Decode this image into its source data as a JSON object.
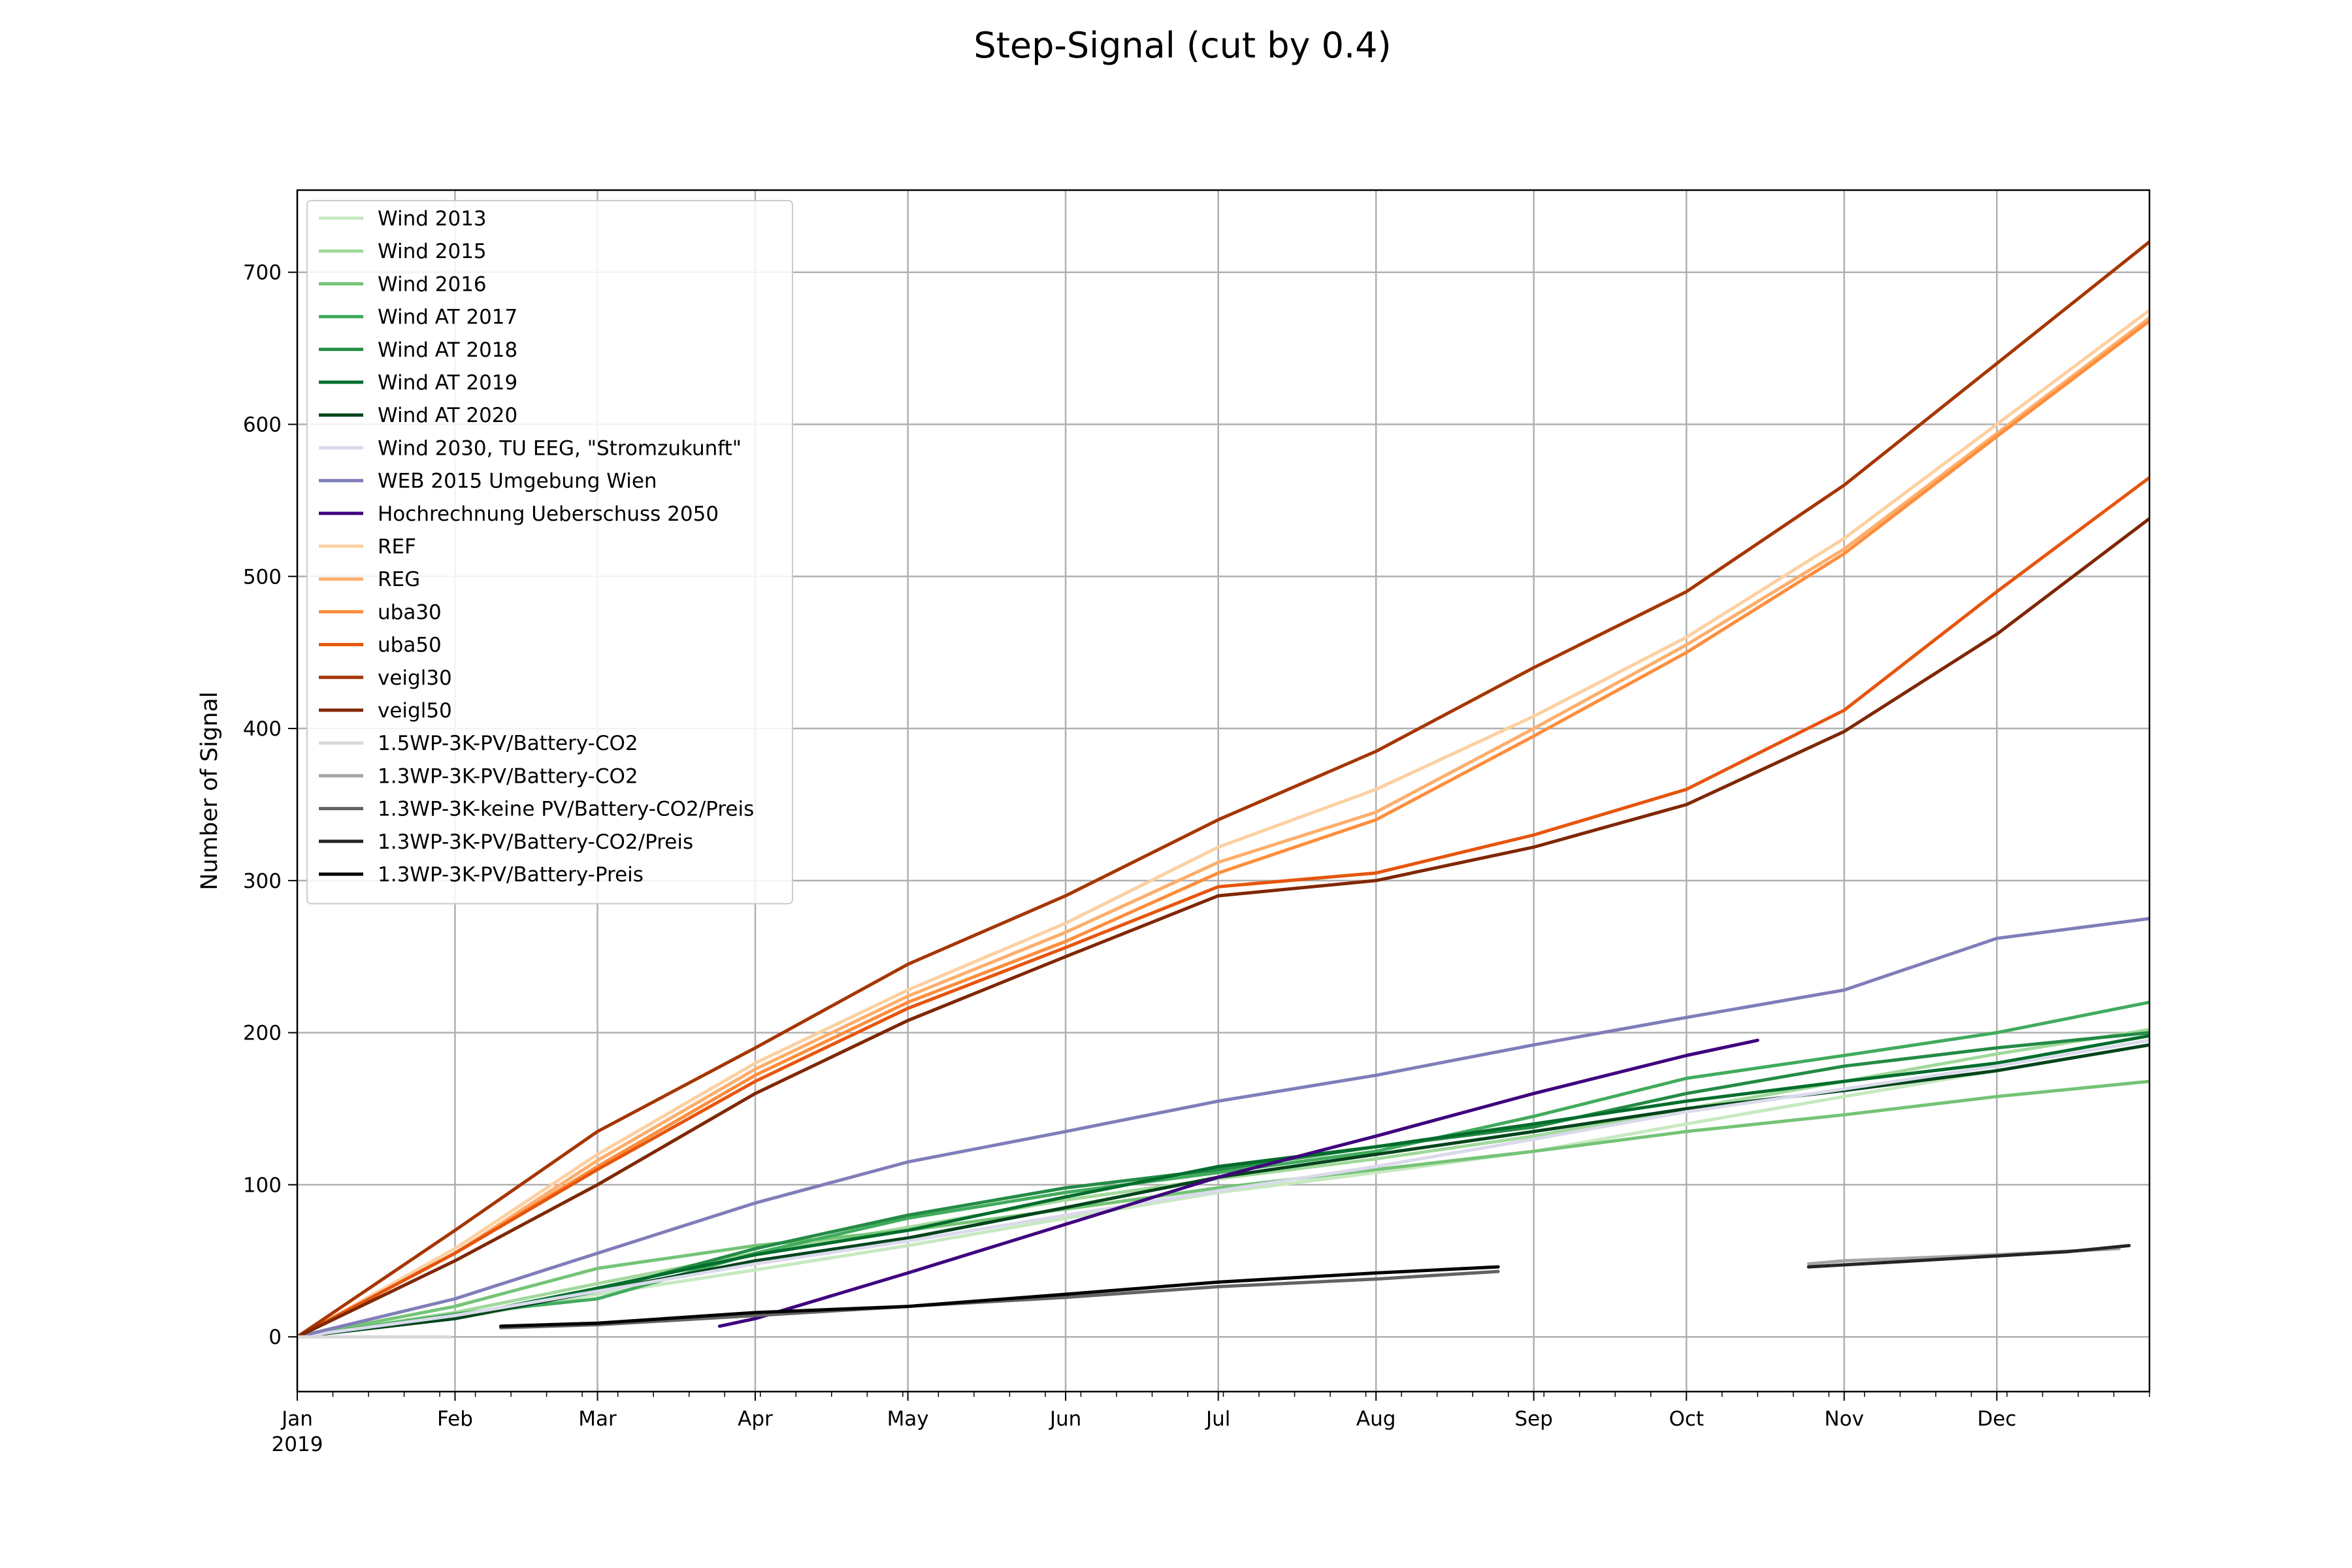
{
  "chart_data": {
    "type": "line",
    "title": "Step-Signal (cut by 0.4)",
    "xlabel": "",
    "ylabel": "Number of Signal",
    "x_axis": {
      "type": "date",
      "range": [
        "2019-01-01",
        "2019-12-31"
      ],
      "ticks": [
        {
          "date": "2019-01-01",
          "label": "Jan",
          "sublabel": "2019"
        },
        {
          "date": "2019-02-01",
          "label": "Feb"
        },
        {
          "date": "2019-03-01",
          "label": "Mar"
        },
        {
          "date": "2019-04-01",
          "label": "Apr"
        },
        {
          "date": "2019-05-01",
          "label": "May"
        },
        {
          "date": "2019-06-01",
          "label": "Jun"
        },
        {
          "date": "2019-07-01",
          "label": "Jul"
        },
        {
          "date": "2019-08-01",
          "label": "Aug"
        },
        {
          "date": "2019-09-01",
          "label": "Sep"
        },
        {
          "date": "2019-10-01",
          "label": "Oct"
        },
        {
          "date": "2019-11-01",
          "label": "Nov"
        },
        {
          "date": "2019-12-01",
          "label": "Dec"
        }
      ]
    },
    "y_axis": {
      "range": [
        -36,
        754
      ],
      "ticks": [
        0,
        100,
        200,
        300,
        400,
        500,
        600,
        700
      ]
    },
    "grid": true,
    "legend_position": "top-left",
    "series": [
      {
        "name": "Wind 2013",
        "color": "#c7e9c0",
        "points": [
          [
            "2019-01-01",
            0
          ],
          [
            "2019-02-01",
            12
          ],
          [
            "2019-03-01",
            28
          ],
          [
            "2019-04-01",
            44
          ],
          [
            "2019-05-01",
            60
          ],
          [
            "2019-06-01",
            78
          ],
          [
            "2019-07-01",
            95
          ],
          [
            "2019-08-01",
            108
          ],
          [
            "2019-09-01",
            122
          ],
          [
            "2019-10-01",
            140
          ],
          [
            "2019-11-01",
            158
          ],
          [
            "2019-12-01",
            175
          ],
          [
            "2019-12-31",
            192
          ]
        ]
      },
      {
        "name": "Wind 2015",
        "color": "#a1d99b",
        "points": [
          [
            "2019-01-01",
            0
          ],
          [
            "2019-02-01",
            16
          ],
          [
            "2019-03-01",
            35
          ],
          [
            "2019-04-01",
            55
          ],
          [
            "2019-05-01",
            72
          ],
          [
            "2019-06-01",
            90
          ],
          [
            "2019-07-01",
            104
          ],
          [
            "2019-08-01",
            117
          ],
          [
            "2019-09-01",
            132
          ],
          [
            "2019-10-01",
            150
          ],
          [
            "2019-11-01",
            168
          ],
          [
            "2019-12-01",
            186
          ],
          [
            "2019-12-31",
            202
          ]
        ]
      },
      {
        "name": "Wind 2016",
        "color": "#74c476",
        "points": [
          [
            "2019-01-01",
            0
          ],
          [
            "2019-02-01",
            20
          ],
          [
            "2019-03-01",
            45
          ],
          [
            "2019-04-01",
            60
          ],
          [
            "2019-05-01",
            70
          ],
          [
            "2019-06-01",
            84
          ],
          [
            "2019-07-01",
            98
          ],
          [
            "2019-08-01",
            110
          ],
          [
            "2019-09-01",
            122
          ],
          [
            "2019-10-01",
            135
          ],
          [
            "2019-11-01",
            146
          ],
          [
            "2019-12-01",
            158
          ],
          [
            "2019-12-31",
            168
          ]
        ]
      },
      {
        "name": "Wind AT 2017",
        "color": "#41ab5d",
        "points": [
          [
            "2019-01-01",
            0
          ],
          [
            "2019-02-01",
            15
          ],
          [
            "2019-03-01",
            25
          ],
          [
            "2019-04-01",
            55
          ],
          [
            "2019-05-01",
            78
          ],
          [
            "2019-06-01",
            95
          ],
          [
            "2019-07-01",
            108
          ],
          [
            "2019-08-01",
            122
          ],
          [
            "2019-09-01",
            145
          ],
          [
            "2019-10-01",
            170
          ],
          [
            "2019-11-01",
            185
          ],
          [
            "2019-12-01",
            200
          ],
          [
            "2019-12-31",
            220
          ]
        ]
      },
      {
        "name": "Wind AT 2018",
        "color": "#238b45",
        "points": [
          [
            "2019-01-01",
            0
          ],
          [
            "2019-02-01",
            14
          ],
          [
            "2019-03-01",
            30
          ],
          [
            "2019-04-01",
            58
          ],
          [
            "2019-05-01",
            80
          ],
          [
            "2019-06-01",
            98
          ],
          [
            "2019-07-01",
            110
          ],
          [
            "2019-08-01",
            125
          ],
          [
            "2019-09-01",
            138
          ],
          [
            "2019-10-01",
            160
          ],
          [
            "2019-11-01",
            178
          ],
          [
            "2019-12-01",
            190
          ],
          [
            "2019-12-31",
            200
          ]
        ]
      },
      {
        "name": "Wind AT 2019",
        "color": "#006d2c",
        "points": [
          [
            "2019-01-01",
            0
          ],
          [
            "2019-02-01",
            13
          ],
          [
            "2019-03-01",
            32
          ],
          [
            "2019-04-01",
            54
          ],
          [
            "2019-05-01",
            70
          ],
          [
            "2019-06-01",
            92
          ],
          [
            "2019-07-01",
            112
          ],
          [
            "2019-08-01",
            125
          ],
          [
            "2019-09-01",
            140
          ],
          [
            "2019-10-01",
            155
          ],
          [
            "2019-11-01",
            168
          ],
          [
            "2019-12-01",
            180
          ],
          [
            "2019-12-31",
            198
          ]
        ]
      },
      {
        "name": "Wind AT 2020",
        "color": "#00441b",
        "points": [
          [
            "2019-01-01",
            0
          ],
          [
            "2019-02-01",
            12
          ],
          [
            "2019-03-01",
            30
          ],
          [
            "2019-04-01",
            50
          ],
          [
            "2019-05-01",
            65
          ],
          [
            "2019-06-01",
            85
          ],
          [
            "2019-07-01",
            105
          ],
          [
            "2019-08-01",
            120
          ],
          [
            "2019-09-01",
            135
          ],
          [
            "2019-10-01",
            150
          ],
          [
            "2019-11-01",
            162
          ],
          [
            "2019-12-01",
            175
          ],
          [
            "2019-12-31",
            192
          ]
        ]
      },
      {
        "name": "Wind 2030, TU EEG, \"Stromzukunft\"",
        "color": "#dadaeb",
        "points": [
          [
            "2019-01-01",
            0
          ],
          [
            "2019-02-01",
            14
          ],
          [
            "2019-03-01",
            30
          ],
          [
            "2019-04-01",
            48
          ],
          [
            "2019-05-01",
            63
          ],
          [
            "2019-06-01",
            80
          ],
          [
            "2019-07-01",
            96
          ],
          [
            "2019-08-01",
            112
          ],
          [
            "2019-09-01",
            130
          ],
          [
            "2019-10-01",
            148
          ],
          [
            "2019-11-01",
            163
          ],
          [
            "2019-12-01",
            178
          ],
          [
            "2019-12-31",
            195
          ]
        ]
      },
      {
        "name": "WEB 2015 Umgebung Wien",
        "color": "#807dba",
        "points": [
          [
            "2019-01-01",
            0
          ],
          [
            "2019-02-01",
            25
          ],
          [
            "2019-03-01",
            55
          ],
          [
            "2019-04-01",
            88
          ],
          [
            "2019-05-01",
            115
          ],
          [
            "2019-06-01",
            135
          ],
          [
            "2019-07-01",
            155
          ],
          [
            "2019-08-01",
            172
          ],
          [
            "2019-09-01",
            192
          ],
          [
            "2019-10-01",
            210
          ],
          [
            "2019-11-01",
            228
          ],
          [
            "2019-12-01",
            262
          ],
          [
            "2019-12-31",
            275
          ]
        ]
      },
      {
        "name": "Hochrechnung Ueberschuss 2050",
        "color": "#3f007d",
        "points": [
          [
            "2019-03-25",
            7
          ],
          [
            "2019-04-01",
            12
          ],
          [
            "2019-05-01",
            42
          ],
          [
            "2019-06-01",
            74
          ],
          [
            "2019-07-01",
            105
          ],
          [
            "2019-08-01",
            132
          ],
          [
            "2019-09-01",
            160
          ],
          [
            "2019-10-01",
            185
          ],
          [
            "2019-10-15",
            195
          ]
        ]
      },
      {
        "name": "REF",
        "color": "#fdd0a2",
        "points": [
          [
            "2019-01-01",
            0
          ],
          [
            "2019-02-01",
            58
          ],
          [
            "2019-03-01",
            120
          ],
          [
            "2019-04-01",
            180
          ],
          [
            "2019-05-01",
            228
          ],
          [
            "2019-06-01",
            272
          ],
          [
            "2019-07-01",
            322
          ],
          [
            "2019-08-01",
            360
          ],
          [
            "2019-09-01",
            408
          ],
          [
            "2019-10-01",
            460
          ],
          [
            "2019-11-01",
            525
          ],
          [
            "2019-12-01",
            600
          ],
          [
            "2019-12-31",
            675
          ]
        ]
      },
      {
        "name": "REG",
        "color": "#fdae6b",
        "points": [
          [
            "2019-01-01",
            0
          ],
          [
            "2019-02-01",
            55
          ],
          [
            "2019-03-01",
            116
          ],
          [
            "2019-04-01",
            176
          ],
          [
            "2019-05-01",
            224
          ],
          [
            "2019-06-01",
            266
          ],
          [
            "2019-07-01",
            312
          ],
          [
            "2019-08-01",
            345
          ],
          [
            "2019-09-01",
            400
          ],
          [
            "2019-10-01",
            455
          ],
          [
            "2019-11-01",
            518
          ],
          [
            "2019-12-01",
            594
          ],
          [
            "2019-12-31",
            670
          ]
        ]
      },
      {
        "name": "uba30",
        "color": "#fd8d3c",
        "points": [
          [
            "2019-01-01",
            0
          ],
          [
            "2019-02-01",
            55
          ],
          [
            "2019-03-01",
            112
          ],
          [
            "2019-04-01",
            172
          ],
          [
            "2019-05-01",
            220
          ],
          [
            "2019-06-01",
            260
          ],
          [
            "2019-07-01",
            305
          ],
          [
            "2019-08-01",
            340
          ],
          [
            "2019-09-01",
            395
          ],
          [
            "2019-10-01",
            450
          ],
          [
            "2019-11-01",
            515
          ],
          [
            "2019-12-01",
            592
          ],
          [
            "2019-12-31",
            668
          ]
        ]
      },
      {
        "name": "uba50",
        "color": "#e6550d",
        "points": [
          [
            "2019-01-01",
            0
          ],
          [
            "2019-02-01",
            55
          ],
          [
            "2019-03-01",
            110
          ],
          [
            "2019-04-01",
            168
          ],
          [
            "2019-05-01",
            216
          ],
          [
            "2019-06-01",
            256
          ],
          [
            "2019-07-01",
            296
          ],
          [
            "2019-08-01",
            305
          ],
          [
            "2019-09-01",
            330
          ],
          [
            "2019-10-01",
            360
          ],
          [
            "2019-11-01",
            412
          ],
          [
            "2019-12-01",
            490
          ],
          [
            "2019-12-31",
            565
          ]
        ]
      },
      {
        "name": "veigl30",
        "color": "#a63603",
        "points": [
          [
            "2019-01-01",
            0
          ],
          [
            "2019-02-01",
            70
          ],
          [
            "2019-03-01",
            135
          ],
          [
            "2019-04-01",
            190
          ],
          [
            "2019-05-01",
            245
          ],
          [
            "2019-06-01",
            290
          ],
          [
            "2019-07-01",
            340
          ],
          [
            "2019-08-01",
            385
          ],
          [
            "2019-09-01",
            440
          ],
          [
            "2019-10-01",
            490
          ],
          [
            "2019-11-01",
            560
          ],
          [
            "2019-12-01",
            640
          ],
          [
            "2019-12-31",
            720
          ]
        ]
      },
      {
        "name": "veigl50",
        "color": "#7f2704",
        "points": [
          [
            "2019-01-01",
            0
          ],
          [
            "2019-02-01",
            50
          ],
          [
            "2019-03-01",
            100
          ],
          [
            "2019-04-01",
            160
          ],
          [
            "2019-05-01",
            208
          ],
          [
            "2019-06-01",
            250
          ],
          [
            "2019-07-01",
            290
          ],
          [
            "2019-08-01",
            300
          ],
          [
            "2019-09-01",
            322
          ],
          [
            "2019-10-01",
            350
          ],
          [
            "2019-11-01",
            398
          ],
          [
            "2019-12-01",
            462
          ],
          [
            "2019-12-31",
            538
          ]
        ]
      },
      {
        "name": "1.5WP-3K-PV/Battery-CO2",
        "color": "#d9d9d9",
        "points": [
          [
            "2019-01-01",
            0
          ],
          [
            "2019-01-31",
            0
          ]
        ]
      },
      {
        "name": "1.3WP-3K-PV/Battery-CO2",
        "color": "#a6a6a6",
        "points": [
          [
            "2019-10-25",
            48
          ],
          [
            "2019-11-01",
            50
          ],
          [
            "2019-12-01",
            54
          ],
          [
            "2019-12-25",
            58
          ]
        ]
      },
      {
        "name": "1.3WP-3K-keine PV/Battery-CO2/Preis",
        "color": "#636363",
        "points": [
          [
            "2019-02-10",
            6
          ],
          [
            "2019-03-01",
            8
          ],
          [
            "2019-04-01",
            14
          ],
          [
            "2019-05-01",
            20
          ],
          [
            "2019-06-01",
            26
          ],
          [
            "2019-07-01",
            33
          ],
          [
            "2019-08-01",
            38
          ],
          [
            "2019-08-25",
            43
          ]
        ]
      },
      {
        "name": "1.3WP-3K-PV/Battery-CO2/Preis",
        "color": "#252525",
        "points": [
          [
            "2019-10-25",
            46
          ],
          [
            "2019-11-15",
            50
          ],
          [
            "2019-12-15",
            56
          ],
          [
            "2019-12-27",
            60
          ]
        ]
      },
      {
        "name": "1.3WP-3K-PV/Battery-Preis",
        "color": "#000000",
        "points": [
          [
            "2019-02-10",
            7
          ],
          [
            "2019-03-01",
            9
          ],
          [
            "2019-04-01",
            16
          ],
          [
            "2019-05-01",
            20
          ],
          [
            "2019-06-01",
            28
          ],
          [
            "2019-07-01",
            36
          ],
          [
            "2019-08-01",
            42
          ],
          [
            "2019-08-25",
            46
          ]
        ]
      }
    ]
  }
}
